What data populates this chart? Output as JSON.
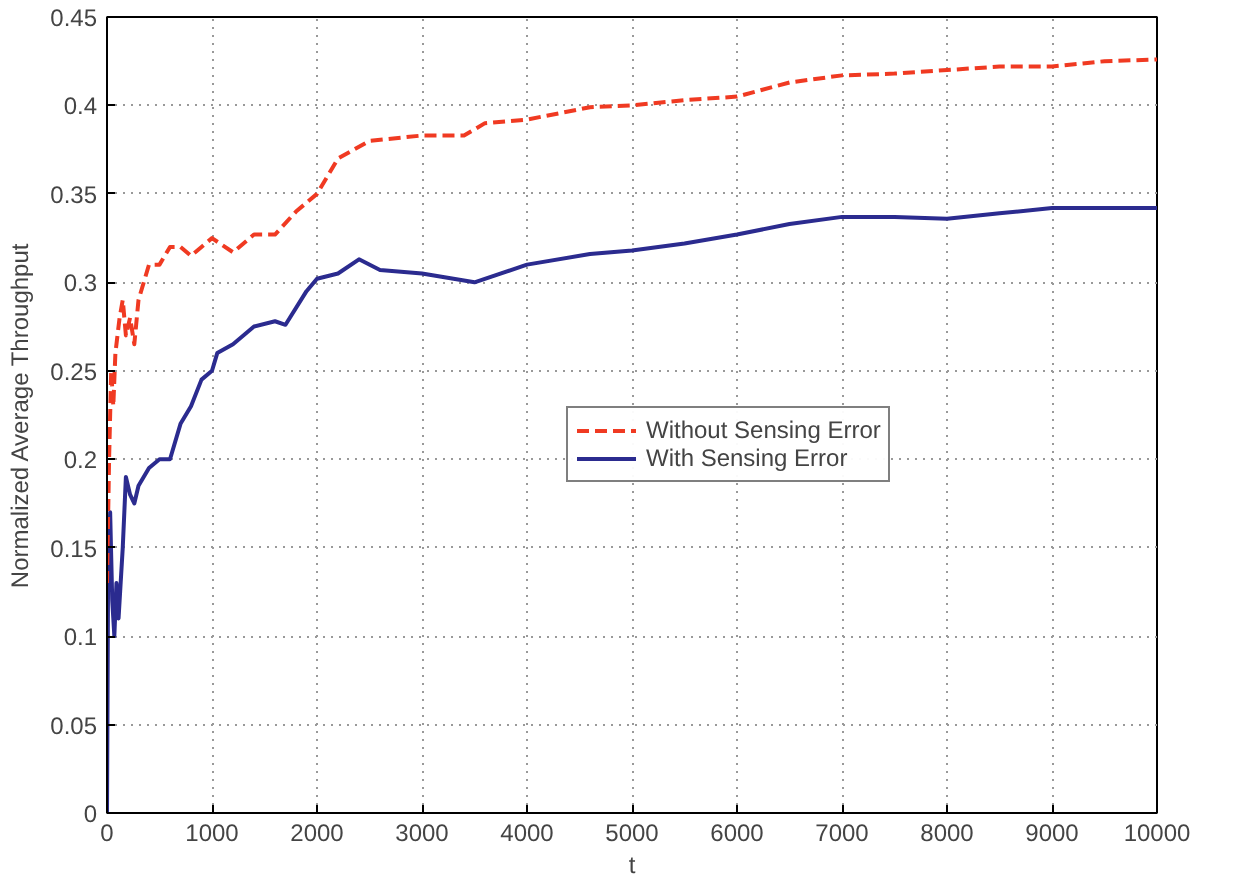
{
  "chart_data": {
    "type": "line",
    "xlabel": "t",
    "ylabel": "Normalized Average Throughput",
    "xlim": [
      0,
      10000
    ],
    "ylim": [
      0,
      0.45
    ],
    "xticks": [
      0,
      1000,
      2000,
      3000,
      4000,
      5000,
      6000,
      7000,
      8000,
      9000,
      10000
    ],
    "yticks": [
      0,
      0.05,
      0.1,
      0.15,
      0.2,
      0.25,
      0.3,
      0.35,
      0.4,
      0.45
    ],
    "grid": true,
    "legend": "right",
    "marker": "none",
    "series": [
      {
        "name": "Without Sensing Error",
        "color": "#f03a22",
        "line_style": "dashed",
        "x": [
          0,
          20,
          40,
          60,
          80,
          120,
          150,
          180,
          220,
          260,
          300,
          400,
          500,
          600,
          700,
          800,
          900,
          1000,
          1200,
          1400,
          1600,
          1800,
          2000,
          2200,
          2500,
          3000,
          3400,
          3600,
          4000,
          4600,
          5000,
          5500,
          6000,
          6500,
          7000,
          7500,
          8000,
          8500,
          9000,
          9500,
          10000
        ],
        "values": [
          0.13,
          0.2,
          0.25,
          0.23,
          0.26,
          0.28,
          0.29,
          0.27,
          0.28,
          0.265,
          0.29,
          0.31,
          0.31,
          0.32,
          0.32,
          0.315,
          0.32,
          0.325,
          0.317,
          0.327,
          0.327,
          0.34,
          0.35,
          0.37,
          0.38,
          0.383,
          0.383,
          0.39,
          0.392,
          0.399,
          0.4,
          0.403,
          0.405,
          0.413,
          0.417,
          0.418,
          0.42,
          0.422,
          0.422,
          0.425,
          0.426
        ]
      },
      {
        "name": "With Sensing Error",
        "color": "#2b2b8f",
        "line_style": "solid",
        "x": [
          0,
          10,
          30,
          50,
          70,
          90,
          110,
          150,
          180,
          220,
          260,
          300,
          400,
          500,
          600,
          700,
          800,
          900,
          1000,
          1050,
          1200,
          1400,
          1600,
          1700,
          1900,
          2000,
          2200,
          2400,
          2600,
          3000,
          3500,
          4000,
          4600,
          5000,
          5500,
          6000,
          6500,
          7000,
          7500,
          8000,
          8500,
          9000,
          10000
        ],
        "values": [
          0,
          0.13,
          0.17,
          0.12,
          0.1,
          0.13,
          0.11,
          0.15,
          0.19,
          0.18,
          0.175,
          0.185,
          0.195,
          0.2,
          0.2,
          0.22,
          0.23,
          0.245,
          0.25,
          0.26,
          0.265,
          0.275,
          0.278,
          0.276,
          0.295,
          0.302,
          0.305,
          0.313,
          0.307,
          0.305,
          0.3,
          0.31,
          0.316,
          0.318,
          0.322,
          0.327,
          0.333,
          0.337,
          0.337,
          0.336,
          0.339,
          0.342,
          0.342
        ]
      }
    ]
  }
}
